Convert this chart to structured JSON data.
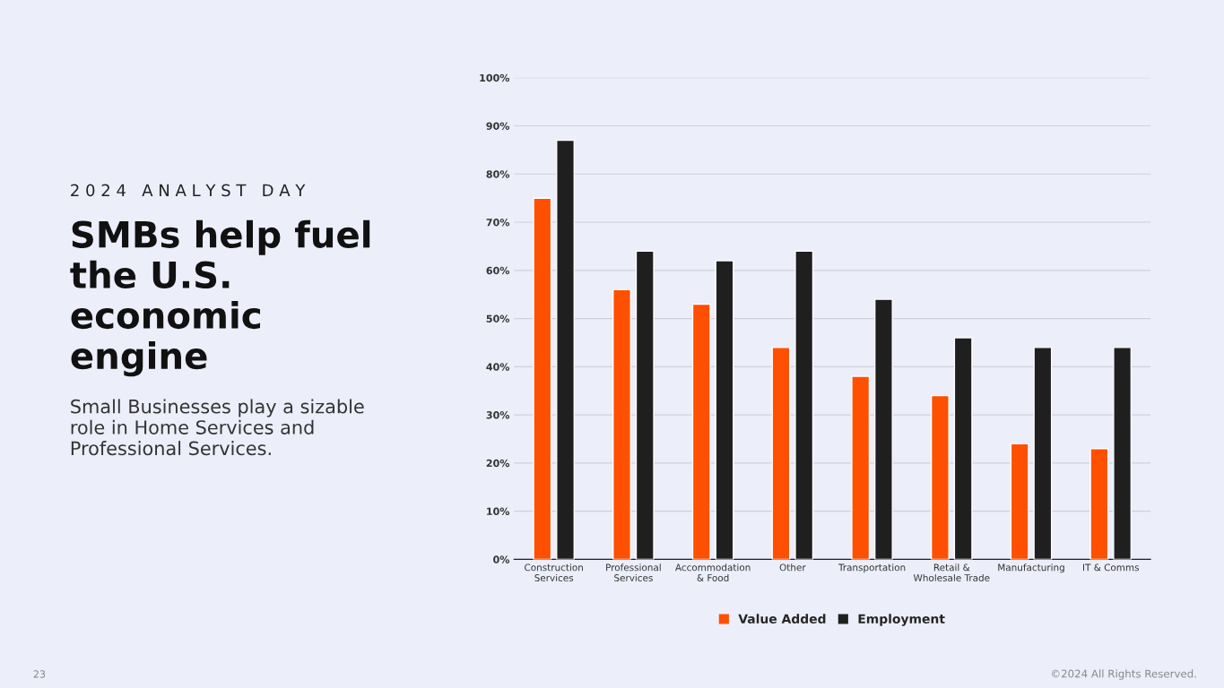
{
  "chart_data": {
    "type": "bar",
    "title": "SMBs help fuel the U.S. economic engine",
    "subtitle": "Small Businesses play a sizable role in Home Services and Professional Services.",
    "annotations": [
      "2 0 2 4   A N A L Y S T   D A Y",
      "23",
      "©2024 All Rights Reserved."
    ],
    "categories": [
      "Construction\nServices",
      "Professional\nServices",
      "Accommodation\n& Food",
      "Other",
      "Transportation",
      "Retail &\nWholesale Trade",
      "Manufacturing",
      "IT & Comms"
    ],
    "series": [
      {
        "name": "Value Added",
        "color": "#ff4f00",
        "values": [
          75,
          56,
          53,
          44,
          38,
          34,
          24,
          23
        ]
      },
      {
        "name": "Employment",
        "color": "#1f1f1f",
        "values": [
          87,
          64,
          62,
          64,
          54,
          46,
          44,
          44
        ]
      }
    ],
    "ylim": [
      0,
      100
    ],
    "yticks": [
      {
        "value": 0,
        "label": "0%"
      },
      {
        "value": 10,
        "label": "10%"
      },
      {
        "value": 20,
        "label": "20%"
      },
      {
        "value": 30,
        "label": "30%"
      },
      {
        "value": 40,
        "label": "40%"
      },
      {
        "value": 50,
        "label": "50%"
      },
      {
        "value": 60,
        "label": "60%"
      },
      {
        "value": 70,
        "label": "70%"
      },
      {
        "value": 80,
        "label": "80%"
      },
      {
        "value": 90,
        "label": "90%"
      },
      {
        "value": 100,
        "label": "100%"
      }
    ],
    "grid": "y",
    "legend": "bottom"
  }
}
